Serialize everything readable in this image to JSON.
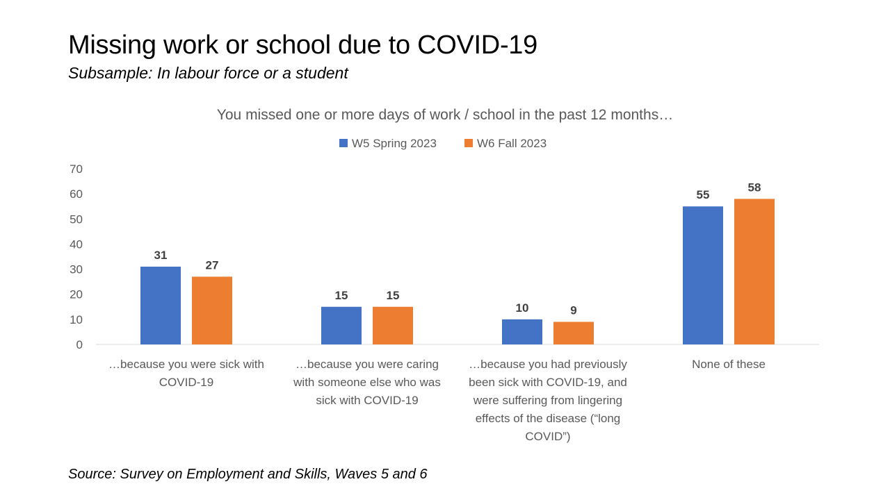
{
  "slide": {
    "title": "Missing work or school due to COVID-19",
    "subtitle": "Subsample: In labour force or a student",
    "source": "Source: Survey on Employment and Skills, Waves 5 and 6"
  },
  "chart_data": {
    "type": "bar",
    "title": "You missed one or more days of work / school in the past 12 months…",
    "categories": [
      "…because you were sick with COVID-19",
      "…because you were caring with someone else who was sick with COVID-19",
      "…because you had previously been sick with COVID-19, and were suffering from lingering effects of the disease (“long COVID”)",
      "None of these"
    ],
    "category_lines": [
      [
        "…because you were sick with",
        "COVID-19"
      ],
      [
        "…because you were caring",
        "with someone else who was",
        "sick with COVID-19"
      ],
      [
        "…because you had previously",
        "been sick with COVID-19, and",
        "were suffering from lingering",
        "effects of the disease (“long",
        "COVID”)"
      ],
      [
        "None of these"
      ]
    ],
    "series": [
      {
        "name": "W5 Spring 2023",
        "color": "#4472C4",
        "values": [
          31,
          15,
          10,
          55
        ]
      },
      {
        "name": "W6 Fall 2023",
        "color": "#ED7D31",
        "values": [
          27,
          15,
          9,
          58
        ]
      }
    ],
    "ylim": [
      0,
      70
    ],
    "yticks": [
      0,
      10,
      20,
      30,
      40,
      50,
      60,
      70
    ],
    "xlabel": "",
    "ylabel": "",
    "grid": false,
    "legend_position": "top",
    "data_labels": true
  }
}
